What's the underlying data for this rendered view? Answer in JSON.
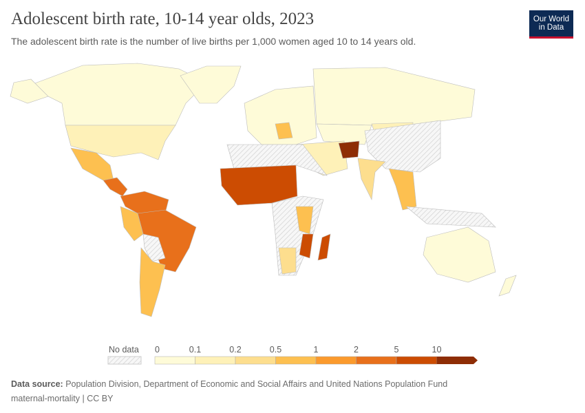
{
  "header": {
    "title": "Adolescent birth rate, 10-14 year olds, 2023",
    "subtitle": "The adolescent birth rate is the number of live births per 1,000 women aged 10 to 14 years old."
  },
  "logo": {
    "line1": "Our World",
    "line2": "in Data",
    "bg": "#0d2a54",
    "accent": "#c8102e"
  },
  "legend": {
    "no_data_label": "No data",
    "ticks": [
      "0",
      "0.1",
      "0.2",
      "0.5",
      "1",
      "2",
      "5",
      "10"
    ],
    "colors": [
      "#fefbd8",
      "#fef1b8",
      "#fdde8e",
      "#fdc050",
      "#fb9a2d",
      "#e8701b",
      "#cc4c02",
      "#8e2d05"
    ]
  },
  "footer": {
    "source_label": "Data source:",
    "source": "Population Division, Department of Economic and Social Affairs and United Nations Population Fund",
    "line2": "maternal-mortality | CC BY"
  }
}
